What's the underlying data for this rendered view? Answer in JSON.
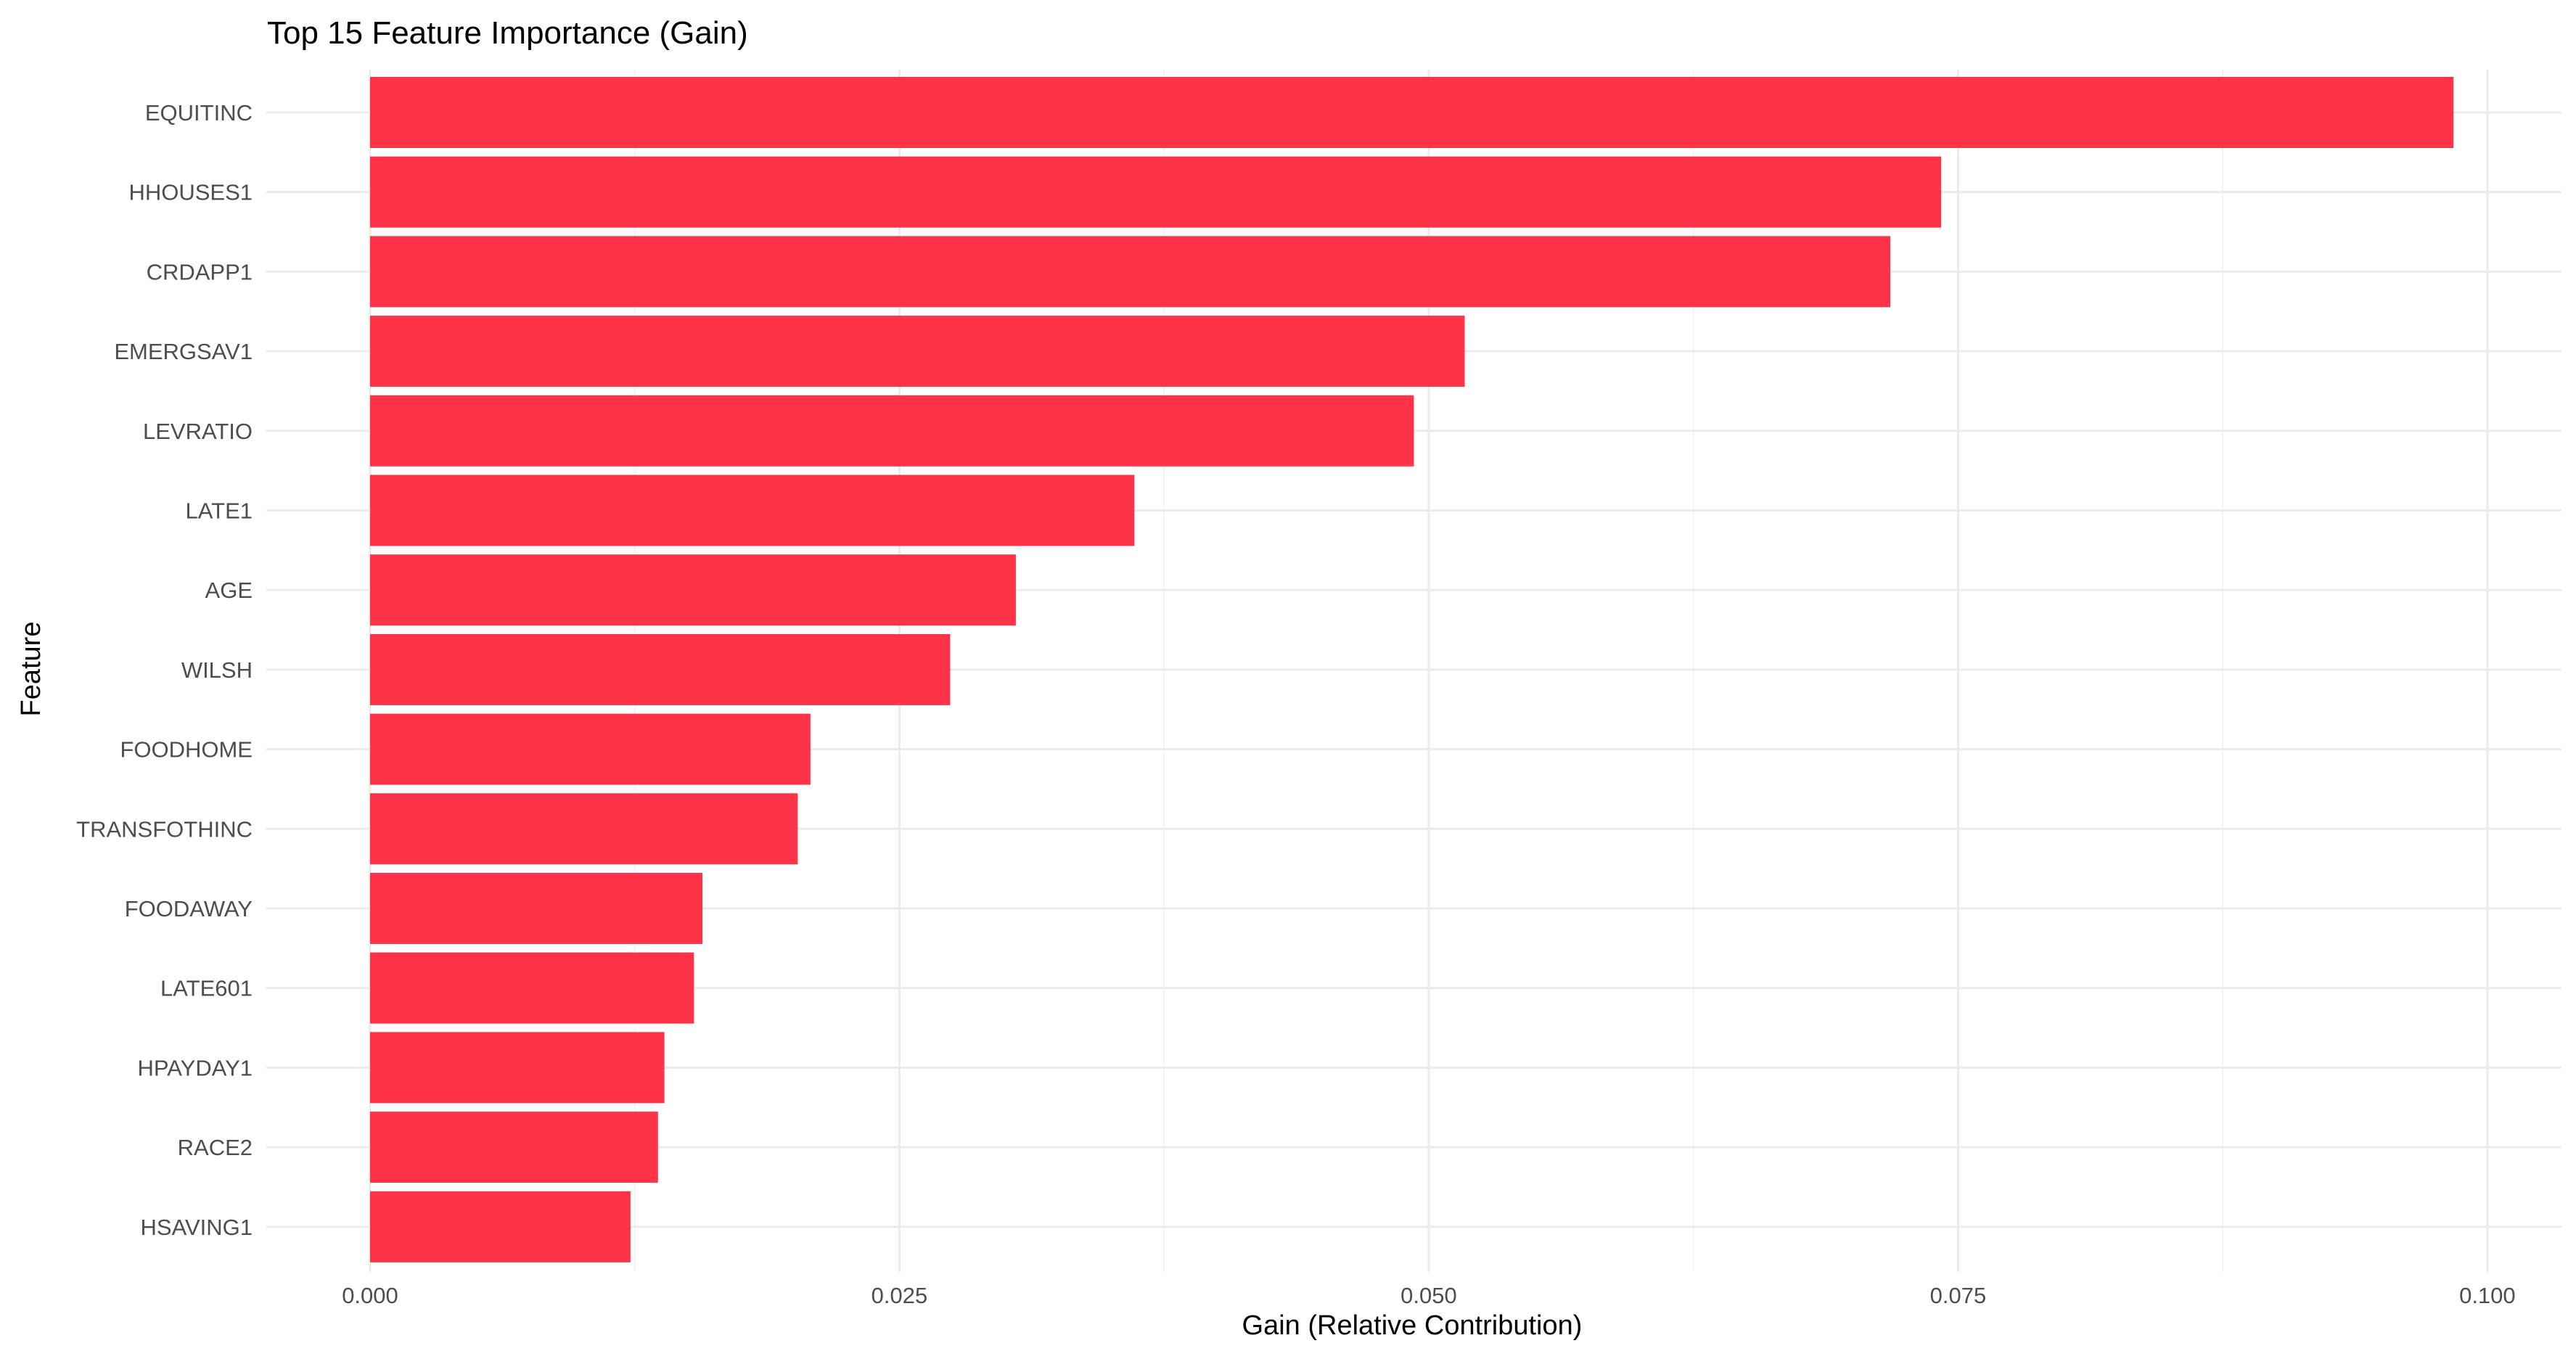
{
  "chart_data": {
    "type": "bar",
    "orientation": "horizontal",
    "title": "Top 15 Feature Importance (Gain)",
    "xlabel": "Gain (Relative Contribution)",
    "ylabel": "Feature",
    "categories": [
      "EQUITINC",
      "HHOUSES1",
      "CRDAPP1",
      "EMERGSAV1",
      "LEVRATIO",
      "LATE1",
      "AGE",
      "WILSH",
      "FOODHOME",
      "TRANSFOTHINC",
      "FOODAWAY",
      "LATE601",
      "HPAYDAY1",
      "RACE2",
      "HSAVING1"
    ],
    "values": [
      0.0984,
      0.0742,
      0.0718,
      0.0517,
      0.0493,
      0.0361,
      0.0305,
      0.0274,
      0.0208,
      0.0202,
      0.0157,
      0.0153,
      0.0139,
      0.0136,
      0.0123
    ],
    "xlim": [
      -0.0049,
      0.1035
    ],
    "xticks": [
      0.0,
      0.025,
      0.05,
      0.075,
      0.1
    ],
    "xtick_labels": [
      "0.000",
      "0.025",
      "0.050",
      "0.075",
      "0.100"
    ],
    "xminor_ticks": [
      0.0125,
      0.0375,
      0.0625,
      0.0875
    ],
    "grid": true,
    "bar_color": "#ff3347",
    "grid_color": "#ebebeb",
    "legend": "none"
  }
}
